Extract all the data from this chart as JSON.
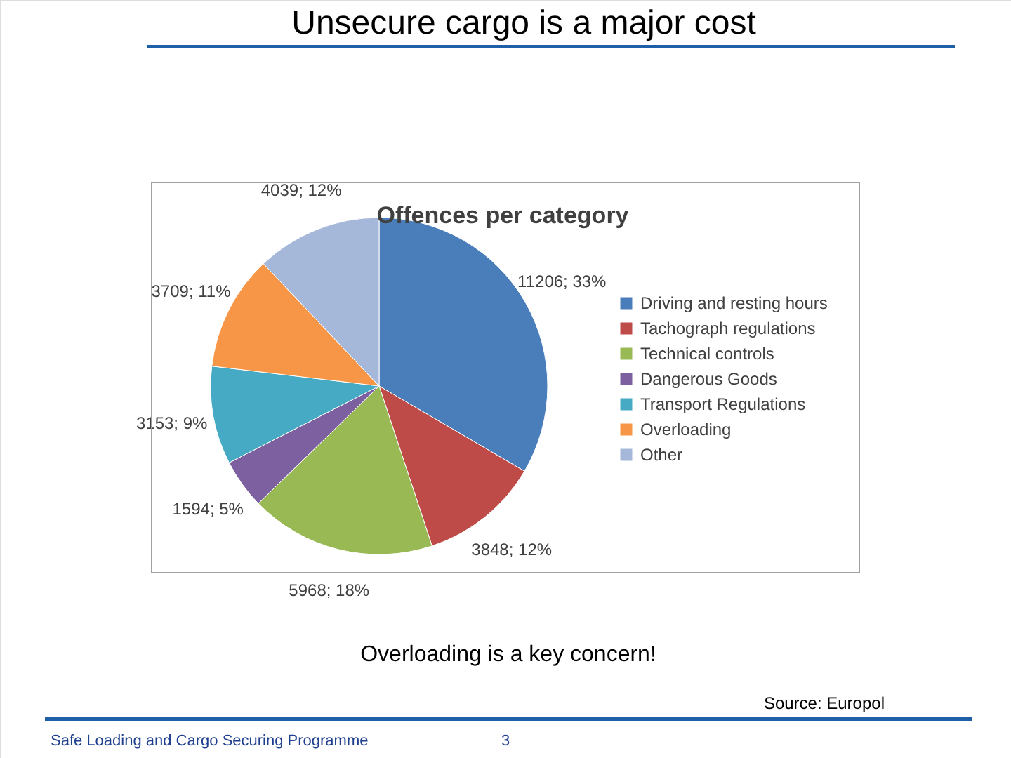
{
  "chart_data": {
    "type": "pie",
    "title": "Unsecure cargo is a major cost",
    "subtitle": "Offences per category",
    "categories": [
      "Driving and resting hours",
      "Tachograph regulations",
      "Technical controls",
      "Dangerous Goods",
      "Transport Regulations",
      "Overloading",
      "Other"
    ],
    "values": [
      11206,
      3848,
      5968,
      1594,
      3153,
      3709,
      4039
    ],
    "colors": [
      "#4a7ebb",
      "#be4b48",
      "#98b954",
      "#7d60a0",
      "#46aac5",
      "#f79646",
      "#a5b8d9"
    ],
    "value_labels": [
      "11206; 33%",
      "3848; 12%",
      "5968; 18%",
      "1594; 5%",
      "3153; 9%",
      "3709; 11%",
      "4039; 12%"
    ],
    "legend": "right",
    "annotations": [
      "Overloading is a key concern!",
      "Source: Europol",
      "Safe Loading and Cargo Securing Programme",
      "3"
    ]
  }
}
